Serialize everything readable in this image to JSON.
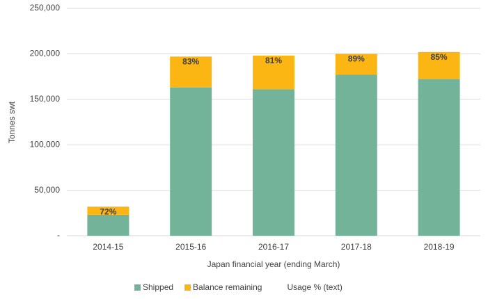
{
  "chart_data": {
    "type": "stacked_bar",
    "categories": [
      "2014-15",
      "2015-16",
      "2016-17",
      "2017-18",
      "2018-19"
    ],
    "series": [
      {
        "name": "Shipped",
        "color": "#72b39a",
        "values": [
          23000,
          163000,
          161000,
          177000,
          172000
        ]
      },
      {
        "name": "Balance remaining",
        "color": "#fbb614",
        "values": [
          9000,
          34000,
          37000,
          23000,
          30000
        ]
      },
      {
        "name": "Usage % (text)",
        "values": [
          72,
          83,
          81,
          89,
          85
        ],
        "value_labels": [
          "72%",
          "83%",
          "81%",
          "89%",
          "85%"
        ]
      }
    ],
    "ylabel": "Tonnes swt",
    "xlabel": "Japan financial year (ending March)",
    "ylim": [
      0,
      250000
    ],
    "yticks": [
      {
        "value": 0,
        "label": "-"
      },
      {
        "value": 50000,
        "label": "50,000"
      },
      {
        "value": 100000,
        "label": "100,000"
      },
      {
        "value": 150000,
        "label": "150,000"
      },
      {
        "value": 200000,
        "label": "200,000"
      },
      {
        "value": 250000,
        "label": "250,000"
      }
    ],
    "grid": true,
    "legend": "bottom"
  }
}
